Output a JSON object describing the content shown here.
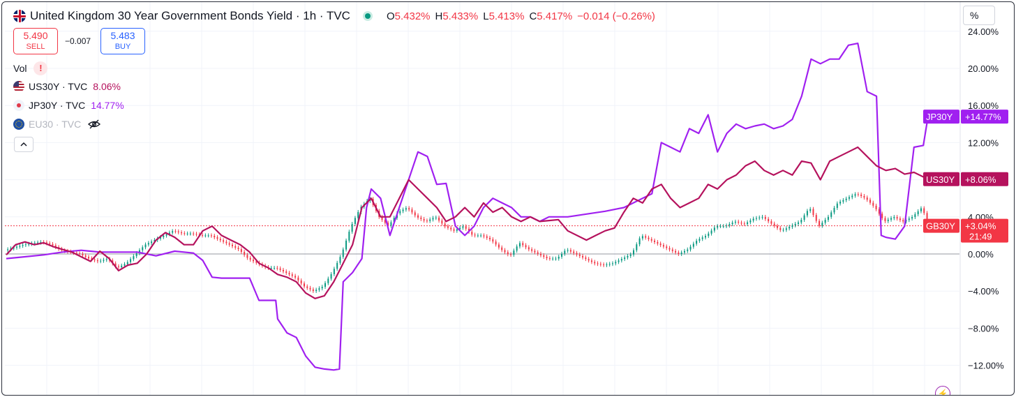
{
  "header": {
    "title": "United Kingdom 30 Year Government Bonds Yield · 1h · TVC",
    "ohlc": [
      {
        "key": "O",
        "value": "5.432%"
      },
      {
        "key": "H",
        "value": "5.433%"
      },
      {
        "key": "L",
        "value": "5.413%"
      },
      {
        "key": "C",
        "value": "5.417%"
      }
    ],
    "change": "−0.014 (−0.26%)",
    "scale_button": "%"
  },
  "trade": {
    "sell_price": "5.490",
    "sell_label": "SELL",
    "spread": "−0.007",
    "buy_price": "5.483",
    "buy_label": "BUY"
  },
  "legend": {
    "vol_label": "Vol",
    "vol_warning": "!",
    "items": [
      {
        "symbol": "US30Y · TVC",
        "value": "8.06%",
        "color": "#b5125d",
        "icon": "us-flag-icon"
      },
      {
        "symbol": "JP30Y · TVC",
        "value": "14.77%",
        "color": "#a020f0",
        "icon": "jp-flag-icon"
      },
      {
        "symbol": "EU30 · TVC",
        "value": "",
        "color": "#b2b5be",
        "icon": "eu-flag-icon",
        "hidden": true
      }
    ]
  },
  "colors": {
    "up": "#089981",
    "down": "#f23645",
    "us30y": "#b5125d",
    "jp30y": "#a020f0",
    "grid": "#f0f3fa",
    "zero_line": "#9598a1"
  },
  "chart_data": {
    "type": "line",
    "title": "United Kingdom 30 Year Government Bonds Yield · 1h · TVC",
    "ylabel": "",
    "xlabel": "",
    "y_unit": "%",
    "ylim": [
      -14.5,
      24.5
    ],
    "y_ticks": [
      "24.00%",
      "20.00%",
      "16.00%",
      "12.00%",
      "8.00%",
      "4.00%",
      "0.00%",
      "−4.00%",
      "−8.00%",
      "−12.00%"
    ],
    "y_tick_values": [
      24,
      20,
      16,
      12,
      8,
      4,
      0,
      -4,
      -8,
      -12
    ],
    "x_range": [
      0,
      100
    ],
    "series": [
      {
        "name": "JP30Y",
        "label": "JP30Y",
        "last_value": "+14.77%",
        "color": "#a020f0",
        "points": [
          [
            0,
            -0.5
          ],
          [
            2,
            -0.3
          ],
          [
            4,
            -0.1
          ],
          [
            6,
            0.2
          ],
          [
            8,
            0.4
          ],
          [
            10,
            0.2
          ],
          [
            12,
            0.2
          ],
          [
            14,
            0.2
          ],
          [
            16,
            -0.2
          ],
          [
            18,
            0.3
          ],
          [
            20,
            0.1
          ],
          [
            21,
            -0.7
          ],
          [
            22,
            -2.5
          ],
          [
            23,
            -2.6
          ],
          [
            26,
            -2.6
          ],
          [
            27,
            -5
          ],
          [
            28,
            -5
          ],
          [
            28.8,
            -5
          ],
          [
            29,
            -7
          ],
          [
            30,
            -8.5
          ],
          [
            31,
            -9
          ],
          [
            32,
            -11
          ],
          [
            33,
            -12.2
          ],
          [
            34,
            -12.4
          ],
          [
            35,
            -12.5
          ],
          [
            35.6,
            -12.4
          ],
          [
            36,
            -3
          ],
          [
            37,
            -2
          ],
          [
            38,
            -0.5
          ],
          [
            38.5,
            5
          ],
          [
            39,
            7
          ],
          [
            40,
            6
          ],
          [
            40.5,
            4
          ],
          [
            41,
            2
          ],
          [
            42,
            5
          ],
          [
            43,
            8
          ],
          [
            44,
            11
          ],
          [
            45,
            10.5
          ],
          [
            46,
            7.5
          ],
          [
            47,
            7.6
          ],
          [
            48,
            3
          ],
          [
            49,
            2
          ],
          [
            50,
            3
          ],
          [
            51,
            5
          ],
          [
            52,
            6
          ],
          [
            53,
            5.5
          ],
          [
            54,
            5
          ],
          [
            55,
            4
          ],
          [
            56,
            4
          ],
          [
            57,
            3.5
          ],
          [
            58,
            4
          ],
          [
            60,
            4
          ],
          [
            62,
            4.3
          ],
          [
            64,
            4.6
          ],
          [
            66,
            5
          ],
          [
            68,
            6
          ],
          [
            69,
            6.5
          ],
          [
            70,
            12
          ],
          [
            71,
            11.5
          ],
          [
            72,
            11
          ],
          [
            73,
            13.5
          ],
          [
            74,
            13
          ],
          [
            75,
            15
          ],
          [
            76,
            11
          ],
          [
            77,
            13
          ],
          [
            78,
            14
          ],
          [
            79,
            13.5
          ],
          [
            80,
            13.8
          ],
          [
            81,
            14
          ],
          [
            82,
            13.5
          ],
          [
            83,
            13.8
          ],
          [
            84,
            14.5
          ],
          [
            85,
            17
          ],
          [
            86,
            21
          ],
          [
            87,
            20.5
          ],
          [
            88,
            21
          ],
          [
            89,
            21
          ],
          [
            90,
            22.5
          ],
          [
            91,
            22.7
          ],
          [
            92,
            17.5
          ],
          [
            93,
            17
          ],
          [
            93.5,
            2
          ],
          [
            94,
            1.8
          ],
          [
            95,
            1.6
          ],
          [
            96,
            3
          ],
          [
            97,
            11.5
          ],
          [
            98,
            11.7
          ],
          [
            98.5,
            14.8
          ]
        ]
      },
      {
        "name": "US30Y",
        "label": "US30Y",
        "last_value": "+8.06%",
        "color": "#b5125d",
        "points": [
          [
            0,
            -0.1
          ],
          [
            1,
            1.0
          ],
          [
            2,
            1.3
          ],
          [
            3,
            1.0
          ],
          [
            4,
            1.2
          ],
          [
            5,
            0.8
          ],
          [
            6,
            0.5
          ],
          [
            7,
            0.2
          ],
          [
            8,
            -0.3
          ],
          [
            9,
            -0.8
          ],
          [
            10,
            0.3
          ],
          [
            11,
            -0.5
          ],
          [
            12,
            -1.8
          ],
          [
            13,
            -1.2
          ],
          [
            14,
            -1
          ],
          [
            15,
            0
          ],
          [
            16,
            1.5
          ],
          [
            17,
            2.3
          ],
          [
            18,
            1.8
          ],
          [
            19,
            1.0
          ],
          [
            20,
            1.0
          ],
          [
            21,
            2.5
          ],
          [
            22,
            3.0
          ],
          [
            23,
            2.0
          ],
          [
            24,
            1.5
          ],
          [
            25,
            1.0
          ],
          [
            26,
            0.2
          ],
          [
            27,
            -1.0
          ],
          [
            28,
            -1.5
          ],
          [
            29,
            -2.2
          ],
          [
            30,
            -2.5
          ],
          [
            31,
            -3.0
          ],
          [
            32,
            -4.2
          ],
          [
            33,
            -4.8
          ],
          [
            34,
            -4.5
          ],
          [
            35,
            -3
          ],
          [
            36,
            -1
          ],
          [
            37,
            1
          ],
          [
            38,
            5
          ],
          [
            39,
            6
          ],
          [
            40,
            4
          ],
          [
            41,
            4
          ],
          [
            42,
            6
          ],
          [
            43,
            8
          ],
          [
            44,
            7
          ],
          [
            45,
            6
          ],
          [
            46,
            5
          ],
          [
            47,
            3.5
          ],
          [
            48,
            4
          ],
          [
            49,
            5
          ],
          [
            50,
            4
          ],
          [
            51,
            5.5
          ],
          [
            52,
            4.5
          ],
          [
            53,
            5
          ],
          [
            54,
            4
          ],
          [
            55,
            3.5
          ],
          [
            56,
            4
          ],
          [
            57,
            3.5
          ],
          [
            58,
            3.6
          ],
          [
            59,
            3.7
          ],
          [
            60,
            2.5
          ],
          [
            62,
            1.5
          ],
          [
            63,
            2
          ],
          [
            64,
            2.5
          ],
          [
            65,
            2.8
          ],
          [
            66,
            4.5
          ],
          [
            67,
            6
          ],
          [
            68,
            5.5
          ],
          [
            69,
            7
          ],
          [
            70,
            7.5
          ],
          [
            71,
            6
          ],
          [
            72,
            5
          ],
          [
            73,
            5.5
          ],
          [
            74,
            6
          ],
          [
            75,
            7.5
          ],
          [
            76,
            7
          ],
          [
            77,
            8
          ],
          [
            78,
            8.5
          ],
          [
            79,
            9.5
          ],
          [
            80,
            10
          ],
          [
            81,
            9
          ],
          [
            82,
            8.5
          ],
          [
            83,
            9
          ],
          [
            84,
            8.5
          ],
          [
            85,
            10
          ],
          [
            86,
            9.8
          ],
          [
            87,
            8
          ],
          [
            88,
            10
          ],
          [
            89,
            10.5
          ],
          [
            90,
            11
          ],
          [
            91,
            11.5
          ],
          [
            92,
            10.5
          ],
          [
            93,
            9.5
          ],
          [
            94,
            9
          ],
          [
            95,
            9.2
          ],
          [
            96,
            8.6
          ],
          [
            97,
            8.8
          ],
          [
            98.5,
            8.06
          ]
        ]
      },
      {
        "name": "GB30Y",
        "label": "GB30Y",
        "last_value": "+3.04%",
        "timer": "21:49",
        "type": "candlestick-close",
        "color": "#f23645",
        "points": [
          [
            0,
            0.4
          ],
          [
            2,
            1.0
          ],
          [
            4,
            1.3
          ],
          [
            5,
            1.0
          ],
          [
            6,
            0.4
          ],
          [
            8,
            0
          ],
          [
            9,
            -0.5
          ],
          [
            10,
            -0.8
          ],
          [
            11,
            -0.5
          ],
          [
            12,
            -1.5
          ],
          [
            13,
            -1
          ],
          [
            14,
            0
          ],
          [
            15,
            1
          ],
          [
            16,
            1.5
          ],
          [
            17,
            2
          ],
          [
            18,
            2.5
          ],
          [
            19,
            2.2
          ],
          [
            20,
            2.2
          ],
          [
            21,
            2
          ],
          [
            22,
            2
          ],
          [
            23,
            1.5
          ],
          [
            24,
            1
          ],
          [
            25,
            0.5
          ],
          [
            26,
            -0.5
          ],
          [
            27,
            -1
          ],
          [
            28,
            -1.5
          ],
          [
            29,
            -1.5
          ],
          [
            30,
            -2
          ],
          [
            31,
            -2.5
          ],
          [
            32,
            -3.5
          ],
          [
            33,
            -4
          ],
          [
            34,
            -3.5
          ],
          [
            35,
            -2
          ],
          [
            36,
            0
          ],
          [
            37,
            3
          ],
          [
            38,
            5
          ],
          [
            39,
            6
          ],
          [
            40,
            4
          ],
          [
            41,
            3
          ],
          [
            42,
            4.5
          ],
          [
            43,
            5
          ],
          [
            44,
            4
          ],
          [
            45,
            3.5
          ],
          [
            46,
            4
          ],
          [
            47,
            3
          ],
          [
            48,
            2.5
          ],
          [
            49,
            3
          ],
          [
            50,
            2
          ],
          [
            51,
            2
          ],
          [
            52,
            1.5
          ],
          [
            53,
            0.5
          ],
          [
            54,
            -0.2
          ],
          [
            55,
            1.2
          ],
          [
            56,
            0.5
          ],
          [
            57,
            0
          ],
          [
            58,
            -0.5
          ],
          [
            59,
            -0.5
          ],
          [
            60,
            0.5
          ],
          [
            61,
            0
          ],
          [
            62,
            -0.5
          ],
          [
            63,
            -1
          ],
          [
            64,
            -1.2
          ],
          [
            65,
            -1
          ],
          [
            66,
            -0.5
          ],
          [
            67,
            0
          ],
          [
            68,
            2
          ],
          [
            69,
            1.5
          ],
          [
            70,
            1
          ],
          [
            71,
            0.5
          ],
          [
            72,
            0
          ],
          [
            73,
            0.5
          ],
          [
            74,
            1.5
          ],
          [
            75,
            2
          ],
          [
            76,
            3
          ],
          [
            77,
            3
          ],
          [
            78,
            3.5
          ],
          [
            79,
            3.2
          ],
          [
            80,
            3.8
          ],
          [
            81,
            4
          ],
          [
            82,
            3.2
          ],
          [
            83,
            2.5
          ],
          [
            84,
            3
          ],
          [
            85,
            3.5
          ],
          [
            86,
            5
          ],
          [
            87,
            3
          ],
          [
            88,
            4
          ],
          [
            89,
            5.5
          ],
          [
            90,
            6
          ],
          [
            91,
            6.5
          ],
          [
            92,
            6
          ],
          [
            93,
            5
          ],
          [
            94,
            3.5
          ],
          [
            95,
            4
          ],
          [
            96,
            3.5
          ],
          [
            97,
            4
          ],
          [
            98,
            5
          ],
          [
            98.8,
            3.04
          ]
        ]
      }
    ],
    "price_line": {
      "value": 3.04,
      "color": "#f23645",
      "style": "dotted"
    },
    "grid": true,
    "legend_position": "top-left"
  }
}
